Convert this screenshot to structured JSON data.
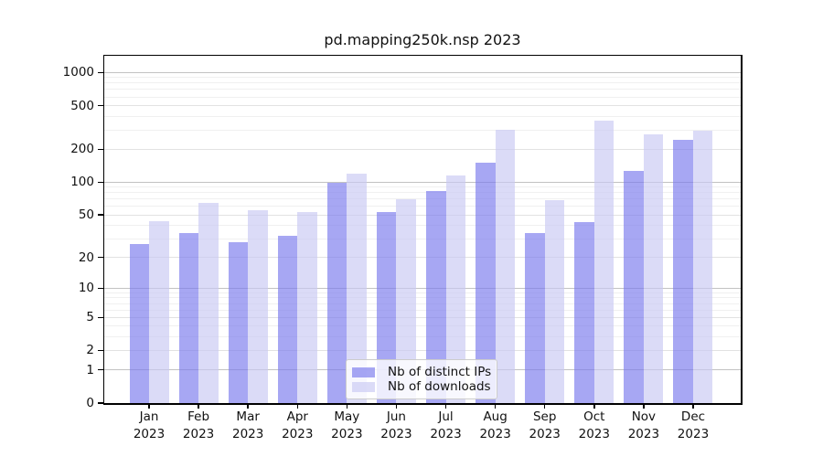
{
  "title": "pd.mapping250k.nsp 2023",
  "colors": {
    "ip_bar": "rgba(122,122,237,0.66)",
    "dl_bar": "rgba(200,200,243,0.66)",
    "grid_decade": "#c2c2c2",
    "grid_labeled": "#e2e2e2",
    "grid_minor": "#f0f0f0",
    "spine": "#000000"
  },
  "y_axis": {
    "tick_labels": [
      "1000",
      "500",
      "200",
      "100",
      "50",
      "20",
      "10",
      "5",
      "2",
      "1",
      "0"
    ],
    "tick_values": [
      1000,
      500,
      200,
      100,
      50,
      20,
      10,
      5,
      2,
      1,
      0
    ]
  },
  "x_axis": {
    "months": [
      "Jan",
      "Feb",
      "Mar",
      "Apr",
      "May",
      "Jun",
      "Jul",
      "Aug",
      "Sep",
      "Oct",
      "Nov",
      "Dec"
    ],
    "year": "2023"
  },
  "legend": {
    "items": [
      {
        "label": "Nb of distinct IPs",
        "series": "ips"
      },
      {
        "label": "Nb of downloads",
        "series": "downloads"
      }
    ]
  },
  "chart_data": {
    "type": "bar",
    "title": "pd.mapping250k.nsp 2023",
    "categories": [
      "Jan 2023",
      "Feb 2023",
      "Mar 2023",
      "Apr 2023",
      "May 2023",
      "Jun 2023",
      "Jul 2023",
      "Aug 2023",
      "Sep 2023",
      "Oct 2023",
      "Nov 2023",
      "Dec 2023"
    ],
    "series": [
      {
        "name": "Nb of distinct IPs",
        "values": [
          27,
          34,
          28,
          32,
          98,
          53,
          83,
          152,
          34,
          43,
          128,
          245
        ]
      },
      {
        "name": "Nb of downloads",
        "values": [
          44,
          65,
          55,
          53,
          120,
          70,
          116,
          303,
          69,
          367,
          272,
          297
        ]
      }
    ],
    "yscale": "log1p",
    "y_ticks": [
      0,
      1,
      2,
      5,
      10,
      20,
      50,
      100,
      200,
      500,
      1000
    ],
    "ylim": [
      0,
      1400
    ],
    "xlabel": "",
    "ylabel": "",
    "grid": "horizontal-log-minor",
    "legend_position": "lower center"
  }
}
